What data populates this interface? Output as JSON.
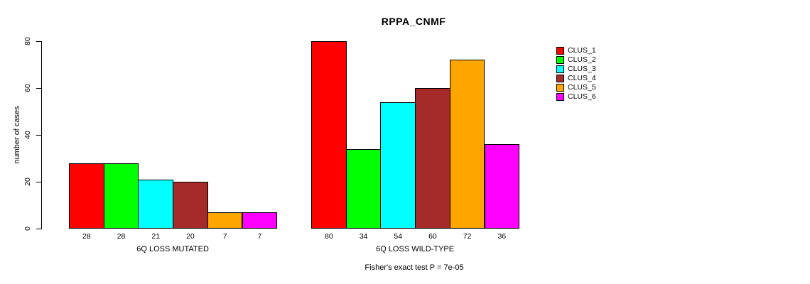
{
  "title": "RPPA_CNMF",
  "chart_data": {
    "type": "bar",
    "title": "RPPA_CNMF",
    "ylabel": "number of cases",
    "xlabel": "",
    "ylim": [
      0,
      80
    ],
    "yticks": [
      0,
      20,
      40,
      60,
      80
    ],
    "categories": [
      "6Q LOSS MUTATED",
      "6Q LOSS WILD-TYPE"
    ],
    "series": [
      {
        "name": "CLUS_1",
        "color": "#ff0000",
        "values": [
          28,
          80
        ]
      },
      {
        "name": "CLUS_2",
        "color": "#00ff00",
        "values": [
          28,
          34
        ]
      },
      {
        "name": "CLUS_3",
        "color": "#00ffff",
        "values": [
          21,
          54
        ]
      },
      {
        "name": "CLUS_4",
        "color": "#a52a2a",
        "values": [
          20,
          60
        ]
      },
      {
        "name": "CLUS_5",
        "color": "#ffa500",
        "values": [
          7,
          72
        ]
      },
      {
        "name": "CLUS_6",
        "color": "#ff00ff",
        "values": [
          7,
          36
        ]
      }
    ],
    "bar_value_labels": true,
    "grid": false,
    "legend_position": "right",
    "annotation": "Fisher's exact test P = 7e-05"
  }
}
